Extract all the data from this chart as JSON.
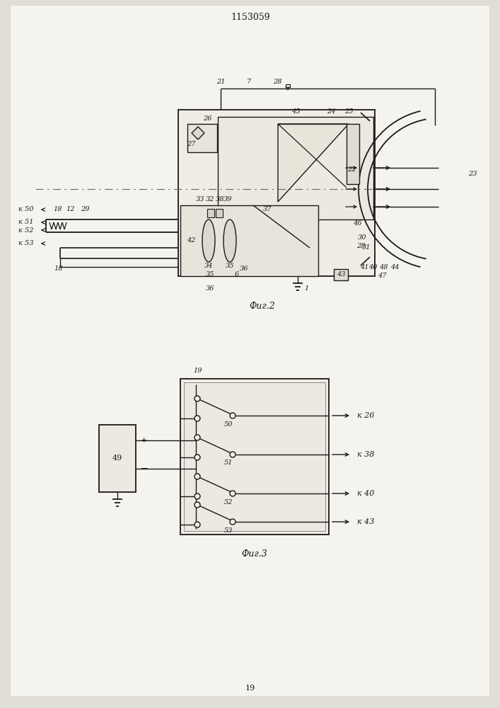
{
  "title": "1153059",
  "bg_color": "#e0ddd5",
  "line_color": "#1a1818",
  "fig2_caption": "Фиг.2",
  "fig3_caption": "Фиг.3",
  "page_num": "19"
}
